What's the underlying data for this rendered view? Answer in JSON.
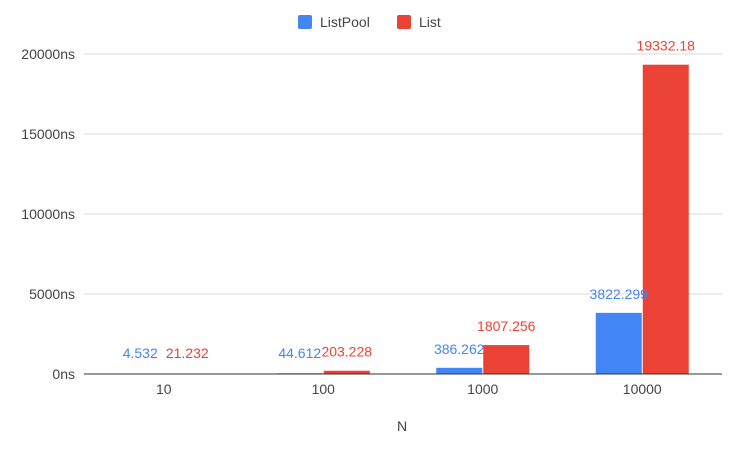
{
  "chart_data": {
    "type": "bar",
    "title": "",
    "xlabel": "N",
    "ylabel": "",
    "categories": [
      "10",
      "100",
      "1000",
      "10000"
    ],
    "series": [
      {
        "name": "ListPool",
        "color": "#4285f4",
        "values": [
          4.532,
          44.612,
          386.262,
          3822.299
        ],
        "labels": [
          "4.532",
          "44.612",
          "386.262",
          "3822.299"
        ]
      },
      {
        "name": "List",
        "color": "#ea4335",
        "values": [
          21.232,
          203.228,
          1807.256,
          19332.18
        ],
        "labels": [
          "21.232",
          "203.228",
          "1807.256",
          "19332.18"
        ]
      }
    ],
    "ylim": [
      0,
      20000
    ],
    "yticks": [
      {
        "value": 0,
        "label": "0ns"
      },
      {
        "value": 5000,
        "label": "5000ns"
      },
      {
        "value": 10000,
        "label": "10000ns"
      },
      {
        "value": 15000,
        "label": "15000ns"
      },
      {
        "value": 20000,
        "label": "20000ns"
      }
    ],
    "grid": true,
    "legend_position": "top-center",
    "axis_color": "#333333",
    "grid_color": "#d9d9d9",
    "text_color": "#444444"
  }
}
